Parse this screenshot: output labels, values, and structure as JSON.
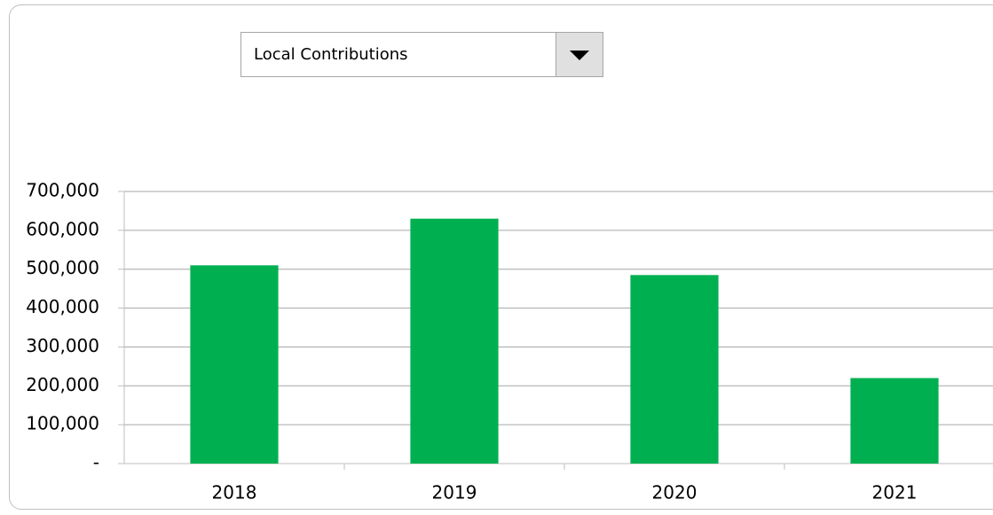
{
  "controls": {
    "dropdown": {
      "selected": "Local Contributions"
    }
  },
  "chart_data": {
    "type": "bar",
    "categories": [
      "2018",
      "2019",
      "2020",
      "2021"
    ],
    "values": [
      510000,
      630000,
      485000,
      220000
    ],
    "color": "#00b050",
    "ylim": [
      0,
      700000
    ],
    "yticks": [
      {
        "value": 0,
        "label": "-"
      },
      {
        "value": 100000,
        "label": "100,000"
      },
      {
        "value": 200000,
        "label": "200,000"
      },
      {
        "value": 300000,
        "label": "300,000"
      },
      {
        "value": 400000,
        "label": "400,000"
      },
      {
        "value": 500000,
        "label": "500,000"
      },
      {
        "value": 600000,
        "label": "600,000"
      },
      {
        "value": 700000,
        "label": "700,000"
      }
    ],
    "grid": true
  }
}
